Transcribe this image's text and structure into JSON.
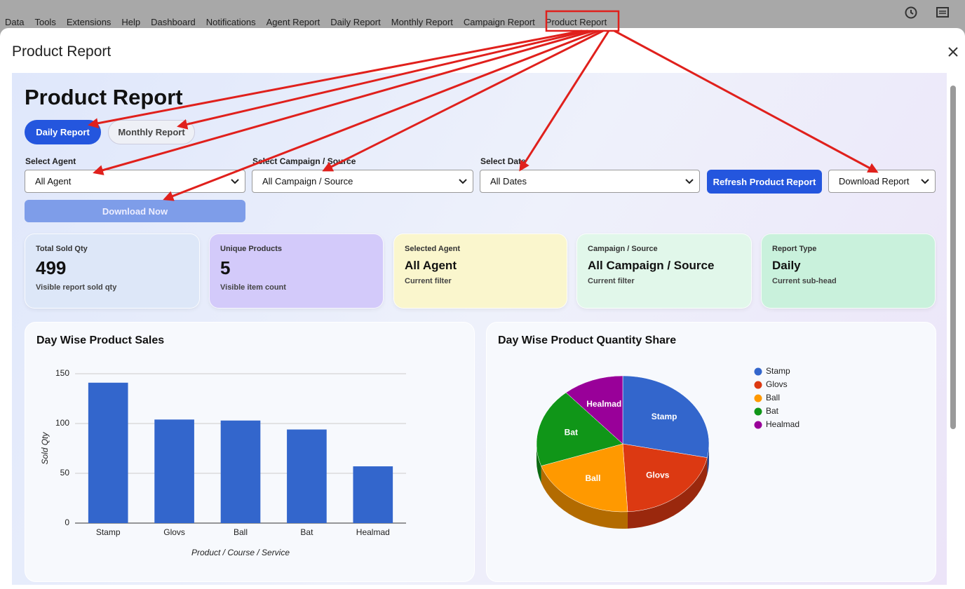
{
  "menu": {
    "items": [
      "Data",
      "Tools",
      "Extensions",
      "Help",
      "Dashboard",
      "Notifications",
      "Agent Report",
      "Daily Report",
      "Monthly Report",
      "Campaign Report",
      "Product Report"
    ]
  },
  "dialog": {
    "title": "Product Report"
  },
  "report": {
    "heading": "Product Report",
    "tabs": [
      "Daily Report",
      "Monthly Report"
    ],
    "filters": [
      {
        "label": "Select Agent",
        "value": "All Agent"
      },
      {
        "label": "Select Campaign / Source",
        "value": "All Campaign / Source"
      },
      {
        "label": "Select Date",
        "value": "All Dates"
      }
    ],
    "refresh_button": "Refresh Product Report",
    "download_select": "Download Report",
    "download_button": "Download Now"
  },
  "cards": [
    {
      "label": "Total Sold Qty",
      "value": 499,
      "note": "Visible report sold qty"
    },
    {
      "label": "Unique Products",
      "value": 5,
      "note": "Visible item count"
    },
    {
      "label": "Selected Agent",
      "value": "All Agent",
      "note": "Current filter"
    },
    {
      "label": "Campaign / Source",
      "value": "All Campaign / Source",
      "note": "Current filter"
    },
    {
      "label": "Report Type",
      "value": "Daily",
      "note": "Current sub-head"
    }
  ],
  "chart_data": [
    {
      "type": "bar",
      "title": "Day Wise Product Sales",
      "categories": [
        "Stamp",
        "Glovs",
        "Ball",
        "Bat",
        "Healmad"
      ],
      "values": [
        141,
        104,
        103,
        94,
        57
      ],
      "color": "#3366cc",
      "ylim": [
        0,
        150
      ],
      "yticks": [
        0,
        50,
        100,
        150
      ],
      "grid": true,
      "xlabel": "Product / Course / Service",
      "ylabel": "Sold Qty"
    },
    {
      "type": "pie",
      "title": "Day Wise Product Quantity Share",
      "categories": [
        "Stamp",
        "Glovs",
        "Ball",
        "Bat",
        "Healmad"
      ],
      "values": [
        141,
        104,
        103,
        94,
        57
      ],
      "colors": [
        "#3366cc",
        "#dc3912",
        "#ff9900",
        "#109618",
        "#990099"
      ],
      "legend": "right"
    }
  ]
}
